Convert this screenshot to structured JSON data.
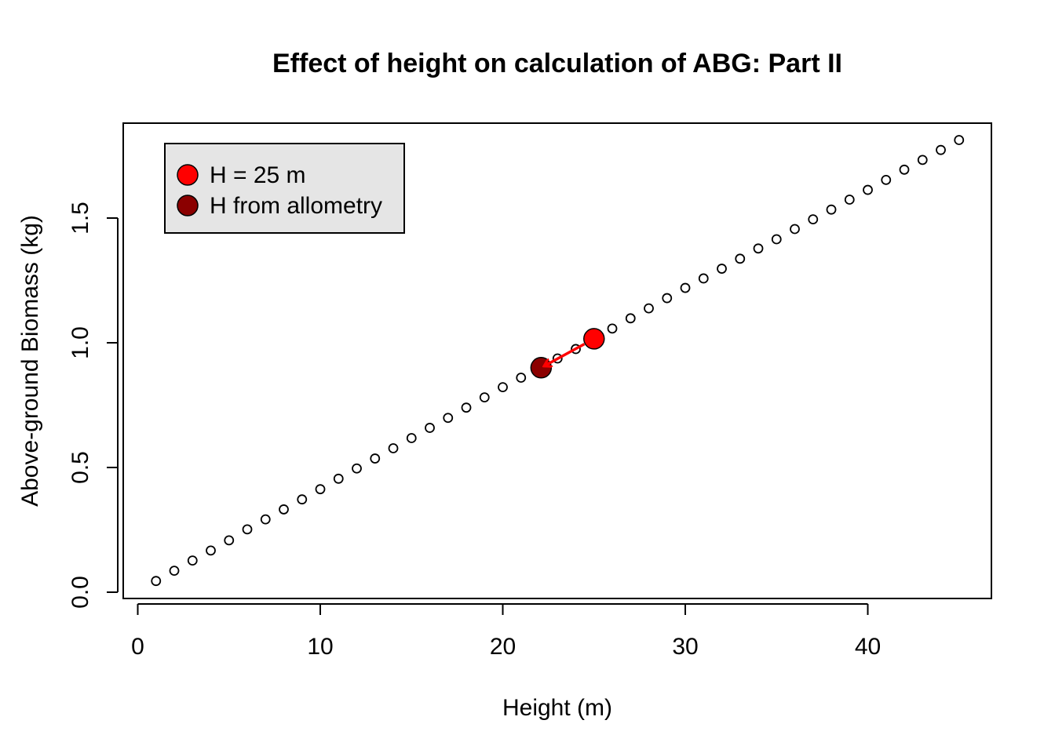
{
  "chart_data": {
    "type": "scatter",
    "title": "Effect of height on calculation of ABG: Part II",
    "xlabel": "Height (m)",
    "ylabel": "Above-ground Biomass (kg)",
    "xlim": [
      0,
      46
    ],
    "ylim": [
      0,
      1.85
    ],
    "x_ticks": [
      0,
      10,
      20,
      30,
      40
    ],
    "y_ticks": [
      0.0,
      0.5,
      1.0,
      1.5
    ],
    "x_tick_labels": [
      "0",
      "10",
      "20",
      "30",
      "40"
    ],
    "y_tick_labels": [
      "0.0",
      "0.5",
      "1.0",
      "1.5"
    ],
    "grid": false,
    "legend_position": "top-left",
    "series": [
      {
        "style": "open-circle",
        "color": "#000000",
        "x": [
          1,
          2,
          3,
          4,
          5,
          6,
          7,
          8,
          9,
          10,
          11,
          12,
          13,
          14,
          15,
          16,
          17,
          18,
          19,
          20,
          21,
          22,
          23,
          24,
          25,
          26,
          27,
          28,
          29,
          30,
          31,
          32,
          33,
          34,
          35,
          36,
          37,
          38,
          39,
          40,
          41,
          42,
          43,
          44,
          45
        ],
        "y": [
          0.045,
          0.086,
          0.127,
          0.167,
          0.208,
          0.252,
          0.292,
          0.332,
          0.372,
          0.413,
          0.455,
          0.496,
          0.536,
          0.577,
          0.618,
          0.659,
          0.699,
          0.74,
          0.781,
          0.822,
          0.86,
          0.9,
          0.937,
          0.975,
          1.016,
          1.057,
          1.098,
          1.138,
          1.179,
          1.22,
          1.258,
          1.297,
          1.337,
          1.378,
          1.415,
          1.456,
          1.495,
          1.534,
          1.574,
          1.613,
          1.653,
          1.694,
          1.733,
          1.773,
          1.813
        ]
      },
      {
        "name": "H = 25 m",
        "style": "filled-circle",
        "color": "#ff0000",
        "x": [
          25
        ],
        "y": [
          1.016
        ]
      },
      {
        "name": "H from allometry",
        "style": "filled-circle",
        "color": "#8b0000",
        "x": [
          22.1
        ],
        "y": [
          0.9
        ]
      }
    ],
    "annotations": [
      {
        "type": "arrow",
        "from": [
          25,
          1.016
        ],
        "to": [
          22.1,
          0.9
        ],
        "color": "#ff0000"
      }
    ],
    "legend": {
      "background": "#e5e5e5",
      "entries": [
        {
          "label": "H = 25 m",
          "color": "#ff0000"
        },
        {
          "label": "H from allometry",
          "color": "#8b0000"
        }
      ]
    }
  }
}
